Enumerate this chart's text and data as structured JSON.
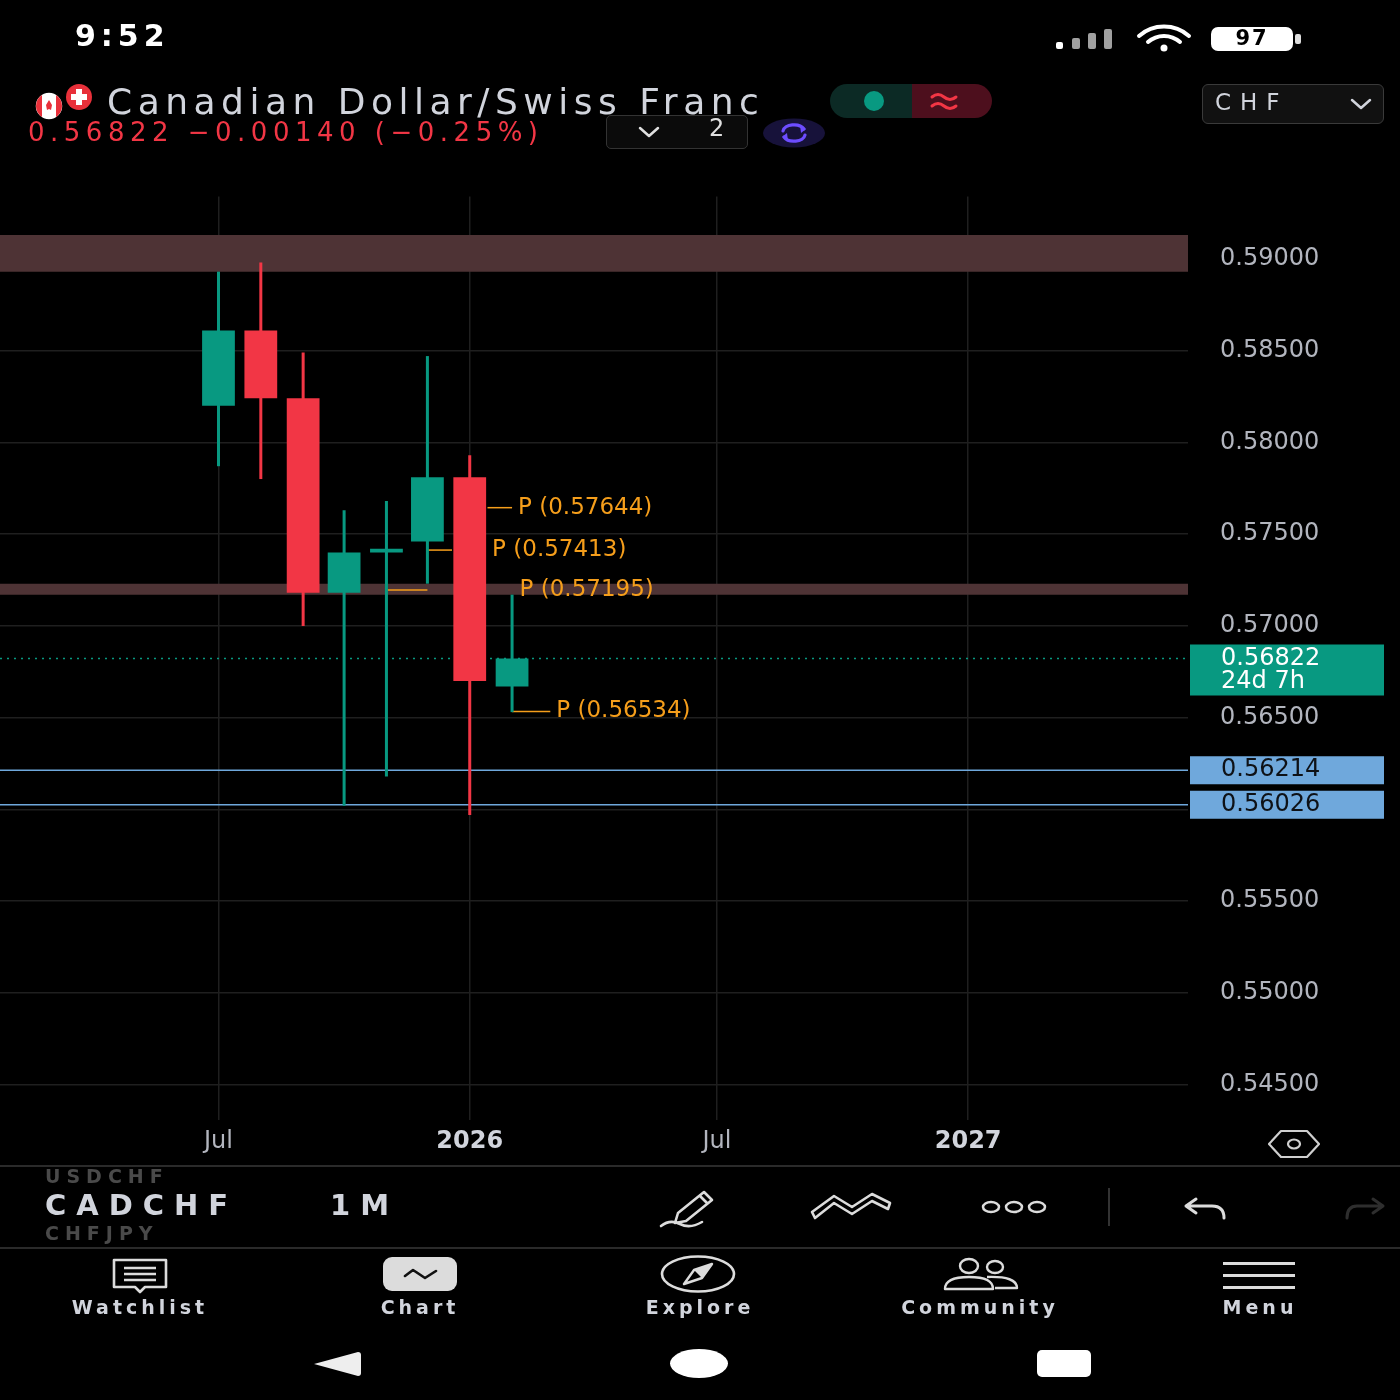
{
  "chart_data": {
    "type": "candlestick",
    "title": "Canadian Dollar/Swiss Franc",
    "subtitle": "0.56822 −0.00140 (−0.25%)",
    "x": [
      "2025-07",
      "2025-08",
      "2025-09",
      "2025-10",
      "2025-11",
      "2025-12",
      "2026-01",
      "2026-02"
    ],
    "ohlc": [
      [
        0.582,
        0.5893,
        0.5787,
        0.5861
      ],
      [
        0.5861,
        0.5898,
        0.578,
        0.5824
      ],
      [
        0.5824,
        0.5849,
        0.57,
        0.5718
      ],
      [
        0.5718,
        0.5763,
        0.5602,
        0.574
      ],
      [
        0.574,
        0.5768,
        0.5618,
        0.5742
      ],
      [
        0.5746,
        0.5847,
        0.5723,
        0.5781
      ],
      [
        0.5781,
        0.5793,
        0.5597,
        0.567
      ],
      [
        0.5667,
        0.5717,
        0.5653,
        0.56822
      ]
    ],
    "colors": [
      "#089981",
      "#f23645",
      "#f23645",
      "#089981",
      "#089981",
      "#089981",
      "#f23645",
      "#089981"
    ],
    "series": [
      {
        "type": "line",
        "name": "P (0.57644)",
        "color": "#f59e1b",
        "x": [
          "2026-01-14",
          "2026-02"
        ],
        "values": [
          0.57644,
          0.57644
        ]
      },
      {
        "type": "line",
        "name": "P (0.57413)",
        "color": "#f59e1b",
        "x": [
          "2025-12",
          "2025-12-19"
        ],
        "values": [
          0.57413,
          0.57413
        ]
      },
      {
        "type": "line",
        "name": "P (0.57195)",
        "color": "#f59e1b",
        "x": [
          "2025-11",
          "2025-12"
        ],
        "values": [
          0.57195,
          0.57195
        ]
      },
      {
        "type": "line",
        "name": "P (0.56534)",
        "color": "#f59e1b",
        "x": [
          "2026-02",
          "2026-03"
        ],
        "values": [
          0.56534,
          0.56534
        ]
      }
    ],
    "xlim": [
      "2025-01-22",
      "2027-06-11"
    ],
    "xticks": [
      {
        "value": "2025-07",
        "label": "Jul"
      },
      {
        "value": "2026-01",
        "label": "2026"
      },
      {
        "value": "2026-07",
        "label": "Jul"
      },
      {
        "value": "2027-01",
        "label": "2027"
      }
    ],
    "ylim": [
      0.5431,
      0.5934
    ],
    "yticks": [
      {
        "value": 0.545,
        "label": "0.54500"
      },
      {
        "value": 0.55,
        "label": "0.55000"
      },
      {
        "value": 0.555,
        "label": "0.55500"
      },
      {
        "value": 0.56,
        "label": null
      },
      {
        "value": 0.565,
        "label": "0.56500"
      },
      {
        "value": 0.57,
        "label": "0.57000"
      },
      {
        "value": 0.575,
        "label": "0.57500"
      },
      {
        "value": 0.58,
        "label": "0.58000"
      },
      {
        "value": 0.585,
        "label": "0.58500"
      },
      {
        "value": 0.59,
        "label": "0.59000"
      }
    ],
    "grid": true,
    "bands": [
      {
        "axis": "y",
        "from": 0.5893,
        "to": 0.5913,
        "color": "#4e3335"
      },
      {
        "axis": "y",
        "from": 0.5717,
        "to": 0.5723,
        "color": "#4e3335"
      }
    ],
    "ref_lines": [
      {
        "axis": "y",
        "value": 0.56822,
        "label": "0.56822\n24d 7h",
        "color": "#089981",
        "line_style": "dotted"
      },
      {
        "axis": "y",
        "value": 0.56214,
        "label": "0.56214",
        "color": "#6fa8dc"
      },
      {
        "axis": "y",
        "value": 0.56026,
        "label": "0.56026",
        "color": "#6fa8dc"
      }
    ],
    "annotations": [
      "9:52",
      "97",
      "2",
      "CHF",
      "USDCHF",
      "CADCHF",
      "CHFJPY",
      "1M",
      "Watchlist",
      "Chart",
      "Explore",
      "Community",
      "Menu"
    ]
  }
}
